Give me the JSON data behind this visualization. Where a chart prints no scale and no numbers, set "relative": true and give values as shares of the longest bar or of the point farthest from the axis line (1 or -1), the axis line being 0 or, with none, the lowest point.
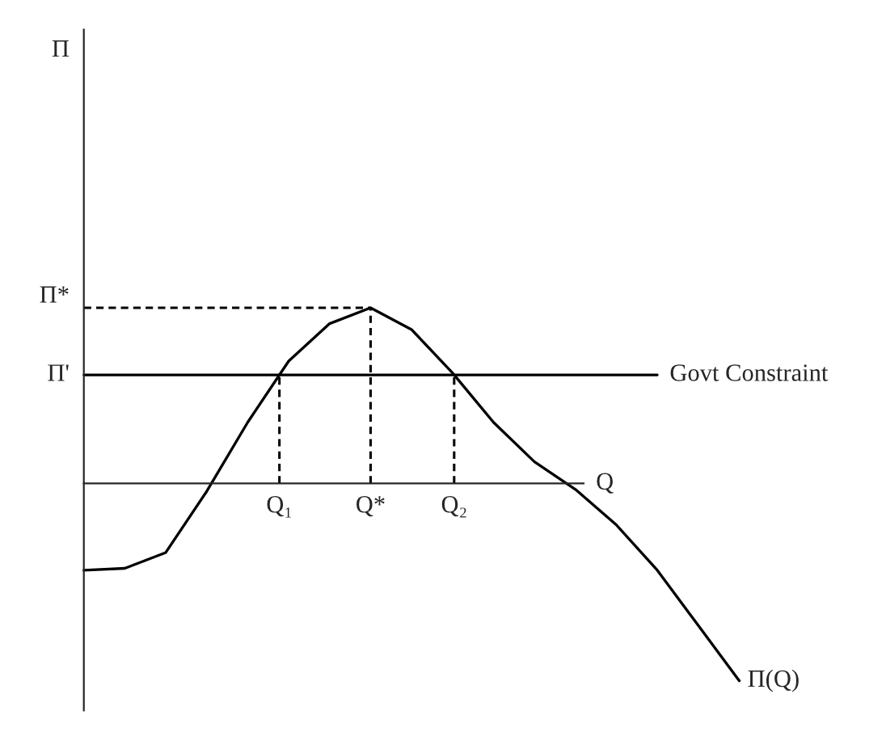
{
  "chart_data": {
    "type": "line",
    "relative": true,
    "xlabel": "Q",
    "categories": [
      null,
      null,
      null,
      null,
      null,
      null,
      null,
      null,
      null,
      null,
      null,
      null,
      null,
      null,
      null,
      null,
      null
    ],
    "series": [
      {
        "name": "Π(Q)",
        "color": "#000000",
        "values": [
          -0.44,
          -0.43,
          -0.35,
          -0.04,
          0.31,
          0.62,
          0.81,
          0.89,
          0.78,
          0.56,
          0.31,
          0.11,
          -0.03,
          -0.21,
          -0.44,
          -0.72,
          -1
        ]
      }
    ],
    "ref_lines": [
      {
        "axis": "y",
        "value": 0.89,
        "label": "Π*",
        "line_style": "dashed"
      },
      {
        "axis": "y",
        "value": 0.55,
        "label": "Govt Constraint",
        "line_style": "solid"
      }
    ],
    "annotations": [
      "Π",
      "Π'",
      "Q₁",
      "Q*",
      "Q₂"
    ]
  }
}
